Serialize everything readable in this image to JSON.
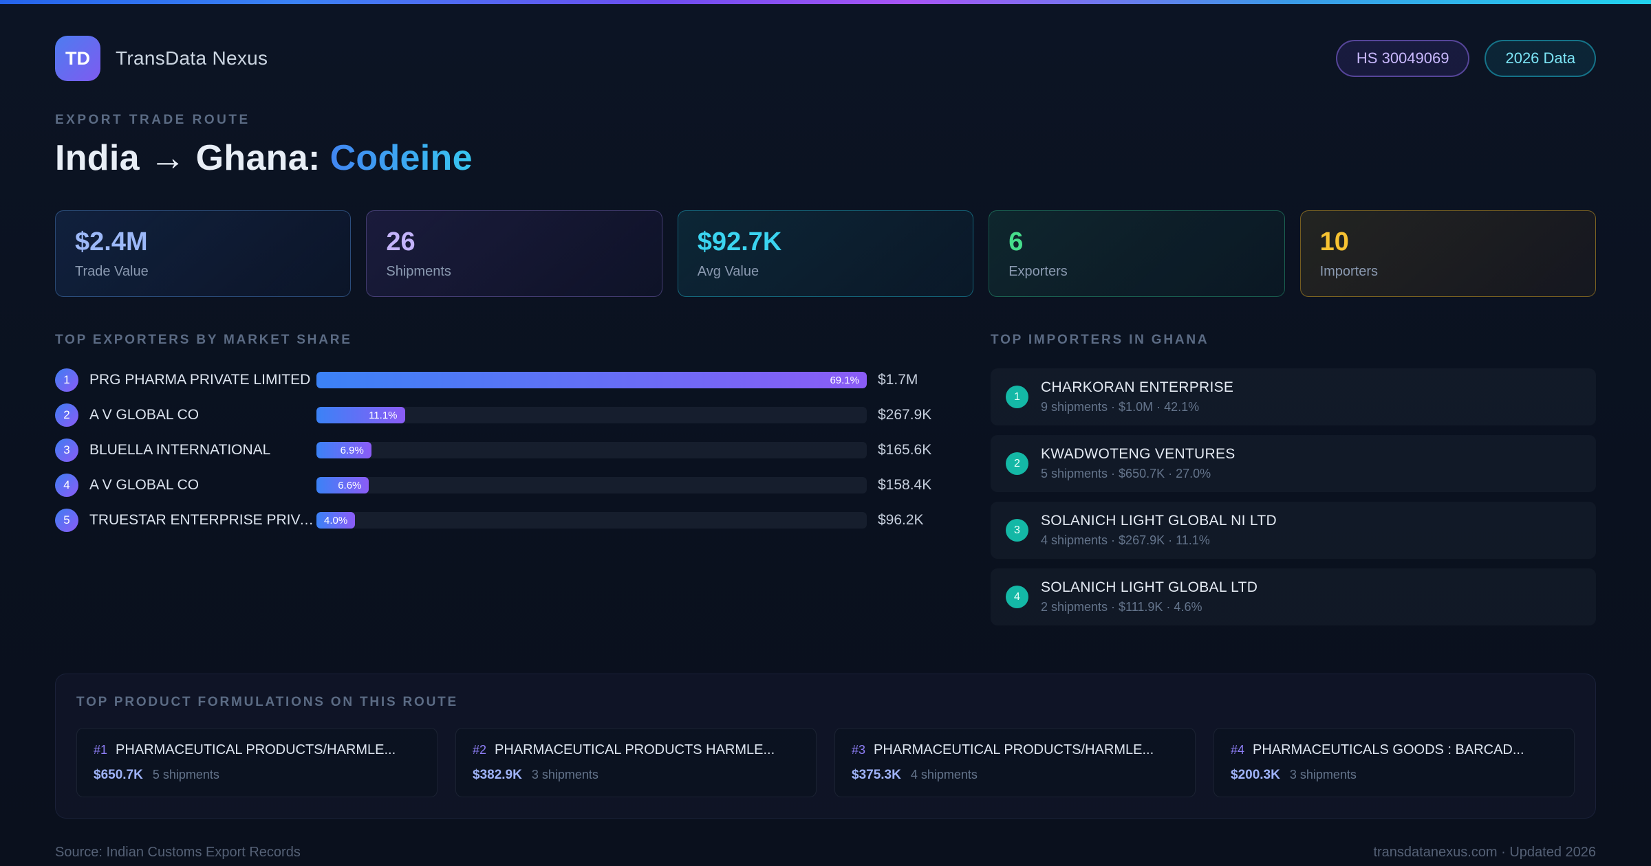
{
  "app": {
    "logo_initials": "TD",
    "name": "TransData Nexus",
    "badges": {
      "hs_code": "HS 30049069",
      "year": "2026 Data"
    }
  },
  "hero": {
    "eyebrow": "EXPORT TRADE ROUTE",
    "title_prefix": "India → Ghana:",
    "title_highlight": "Codeine"
  },
  "stats": [
    {
      "value": "$2.4M",
      "label": "Trade Value"
    },
    {
      "value": "26",
      "label": "Shipments"
    },
    {
      "value": "$92.7K",
      "label": "Avg Value"
    },
    {
      "value": "6",
      "label": "Exporters"
    },
    {
      "value": "10",
      "label": "Importers"
    }
  ],
  "exporters": {
    "heading": "TOP EXPORTERS BY MARKET SHARE",
    "items": [
      {
        "rank": "1",
        "name": "PRG PHARMA PRIVATE LIMITED",
        "share_pct": 69.1,
        "share_label": "69.1%",
        "value": "$1.7M"
      },
      {
        "rank": "2",
        "name": "A V GLOBAL CO",
        "share_pct": 11.1,
        "share_label": "11.1%",
        "value": "$267.9K"
      },
      {
        "rank": "3",
        "name": "BLUELLA INTERNATIONAL",
        "share_pct": 6.9,
        "share_label": "6.9%",
        "value": "$165.6K"
      },
      {
        "rank": "4",
        "name": "A V GLOBAL CO",
        "share_pct": 6.6,
        "share_label": "6.6%",
        "value": "$158.4K"
      },
      {
        "rank": "5",
        "name": "TRUESTAR ENTERPRISE PRIVAT...",
        "share_pct": 4.0,
        "share_label": "4.0%",
        "value": "$96.2K"
      }
    ]
  },
  "importers": {
    "heading": "TOP IMPORTERS IN GHANA",
    "items": [
      {
        "rank": "1",
        "name": "CHARKORAN ENTERPRISE",
        "meta": "9 shipments · $1.0M · 42.1%"
      },
      {
        "rank": "2",
        "name": "KWADWOTENG VENTURES",
        "meta": "5 shipments · $650.7K · 27.0%"
      },
      {
        "rank": "3",
        "name": "SOLANICH LIGHT GLOBAL NI LTD",
        "meta": "4 shipments · $267.9K · 11.1%"
      },
      {
        "rank": "4",
        "name": "SOLANICH LIGHT GLOBAL LTD",
        "meta": "2 shipments · $111.9K · 4.6%"
      }
    ]
  },
  "products": {
    "heading": "TOP PRODUCT FORMULATIONS ON THIS ROUTE",
    "items": [
      {
        "rank": "#1",
        "name": "PHARMACEUTICAL PRODUCTS/HARMLE...",
        "value": "$650.7K",
        "shipments": "5 shipments"
      },
      {
        "rank": "#2",
        "name": "PHARMACEUTICAL PRODUCTS HARMLE...",
        "value": "$382.9K",
        "shipments": "3 shipments"
      },
      {
        "rank": "#3",
        "name": "PHARMACEUTICAL PRODUCTS/HARMLE...",
        "value": "$375.3K",
        "shipments": "4 shipments"
      },
      {
        "rank": "#4",
        "name": "PHARMACEUTICALS GOODS : BARCAD...",
        "value": "$200.3K",
        "shipments": "3 shipments"
      }
    ]
  },
  "footer": {
    "source": "Source: Indian Customs Export Records",
    "site": "transdatanexus.com · Updated 2026"
  },
  "colors": {
    "accent_blue": "#3b82f6",
    "accent_purple": "#8b5cf6",
    "accent_cyan": "#22d3ee",
    "accent_green": "#34d399",
    "accent_amber": "#fbbf24",
    "importer_teal": "#14b8a6"
  }
}
